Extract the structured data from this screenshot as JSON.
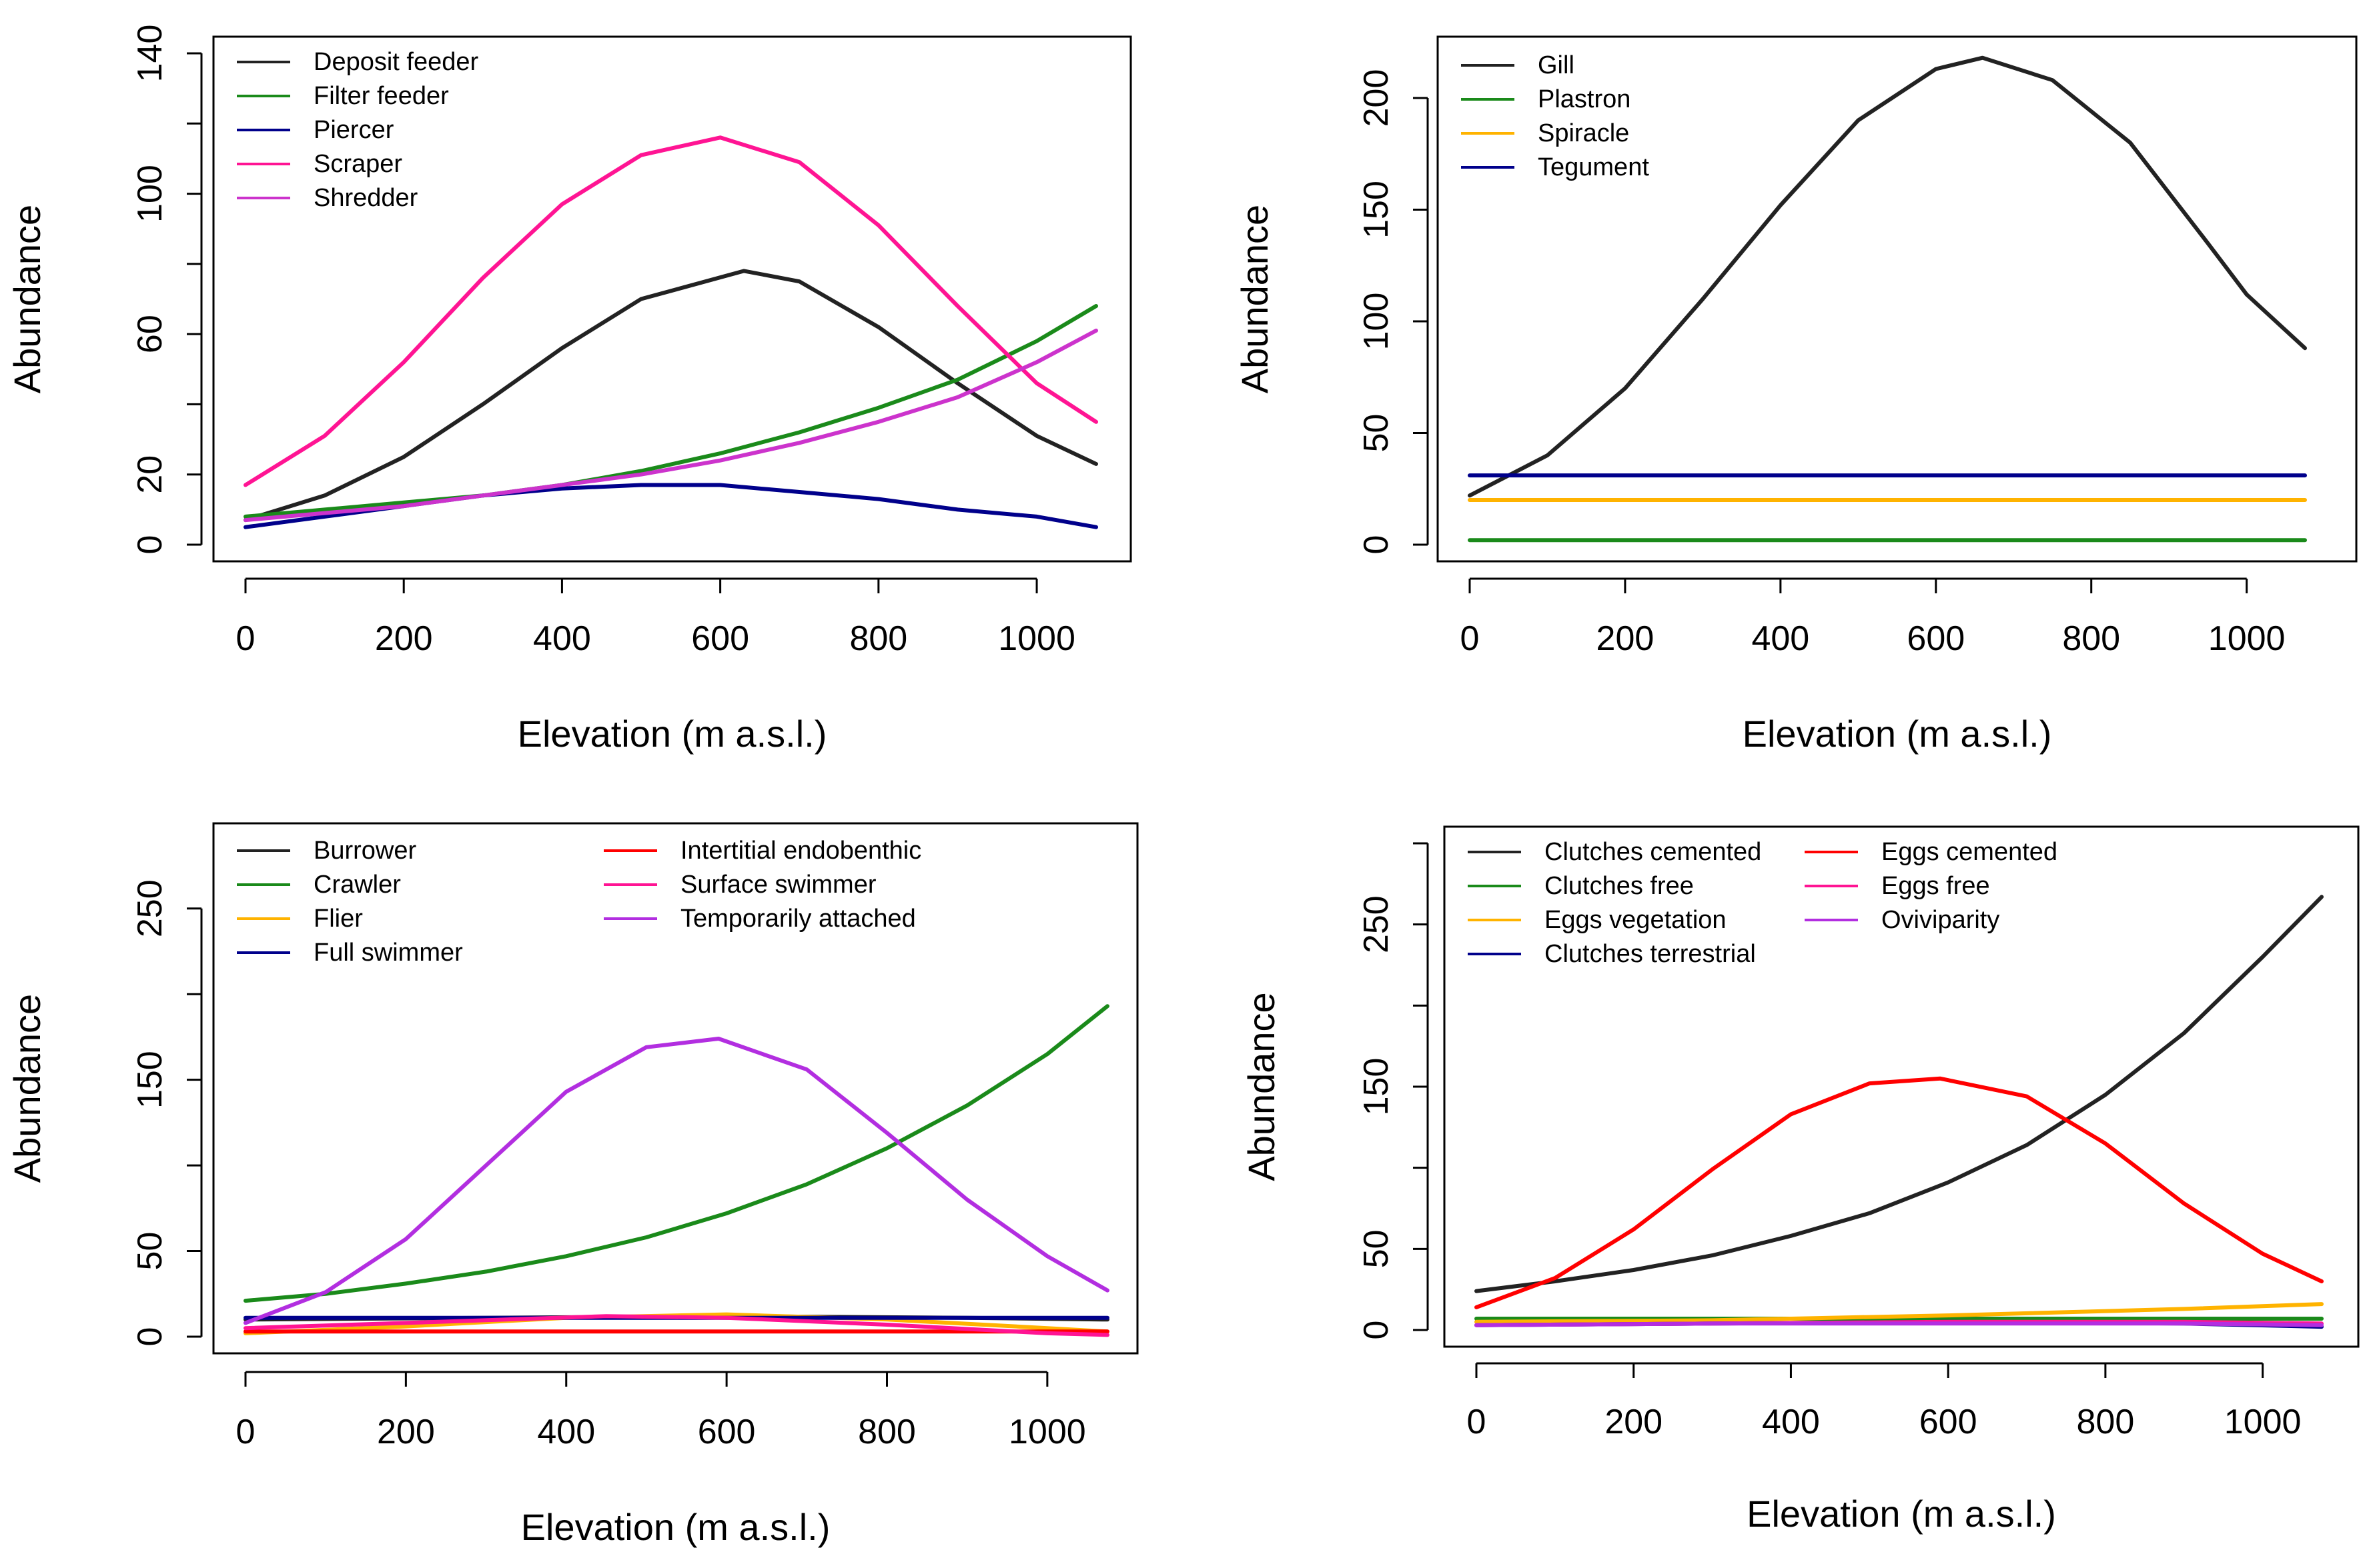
{
  "chart_data": [
    {
      "type": "line",
      "xlabel": "Elevation (m a.s.l.)",
      "ylabel": "Abundance",
      "xlim": [
        0,
        1075
      ],
      "ylim": [
        0,
        140
      ],
      "xticks": [
        0,
        200,
        400,
        600,
        800,
        1000
      ],
      "yticks": [
        0,
        20,
        60,
        100,
        140
      ],
      "yticks_minor": [
        40,
        80,
        120
      ],
      "legend_position": "top-left",
      "legend_columns": 1,
      "series": [
        {
          "name": "Deposit feeder",
          "color": "#222222",
          "x": [
            0,
            100,
            200,
            300,
            400,
            500,
            630,
            700,
            800,
            900,
            1000,
            1075
          ],
          "y": [
            7,
            14,
            25,
            40,
            56,
            70,
            78,
            75,
            62,
            46,
            31,
            23
          ]
        },
        {
          "name": "Filter feeder",
          "color": "#1a8a1a",
          "x": [
            0,
            100,
            200,
            300,
            400,
            500,
            600,
            700,
            800,
            900,
            1000,
            1075
          ],
          "y": [
            8,
            10,
            12,
            14,
            17,
            21,
            26,
            32,
            39,
            47,
            58,
            68
          ]
        },
        {
          "name": "Piercer",
          "color": "#00008b",
          "x": [
            0,
            100,
            200,
            300,
            400,
            500,
            600,
            700,
            800,
            900,
            1000,
            1075
          ],
          "y": [
            5,
            8,
            11,
            14,
            16,
            17,
            17,
            15,
            13,
            10,
            8,
            5
          ]
        },
        {
          "name": "Scraper",
          "color": "#ff1493",
          "x": [
            0,
            100,
            200,
            300,
            400,
            500,
            600,
            700,
            800,
            900,
            1000,
            1075
          ],
          "y": [
            17,
            31,
            52,
            76,
            97,
            111,
            116,
            109,
            91,
            68,
            46,
            35
          ]
        },
        {
          "name": "Shredder",
          "color": "#cc33cc",
          "x": [
            0,
            100,
            200,
            300,
            400,
            500,
            600,
            700,
            800,
            900,
            1000,
            1075
          ],
          "y": [
            7,
            9,
            11,
            14,
            17,
            20,
            24,
            29,
            35,
            42,
            52,
            61
          ]
        }
      ]
    },
    {
      "type": "line",
      "xlabel": "Elevation (m a.s.l.)",
      "ylabel": "Abundance",
      "xlim": [
        0,
        1075
      ],
      "ylim": [
        0,
        220
      ],
      "xticks": [
        0,
        200,
        400,
        600,
        800,
        1000
      ],
      "yticks": [
        0,
        50,
        100,
        150,
        200
      ],
      "yticks_minor": [],
      "legend_position": "top-left",
      "legend_columns": 1,
      "series": [
        {
          "name": "Gill",
          "color": "#222222",
          "x": [
            0,
            100,
            200,
            300,
            400,
            500,
            600,
            660,
            750,
            850,
            950,
            1000,
            1075
          ],
          "y": [
            22,
            40,
            70,
            110,
            152,
            190,
            213,
            218,
            208,
            180,
            135,
            112,
            88
          ]
        },
        {
          "name": "Plastron",
          "color": "#1a8a1a",
          "x": [
            0,
            1075
          ],
          "y": [
            2,
            2
          ]
        },
        {
          "name": "Spiracle",
          "color": "#ffb300",
          "x": [
            0,
            1075
          ],
          "y": [
            20,
            20
          ]
        },
        {
          "name": "Tegument",
          "color": "#00008b",
          "x": [
            0,
            1075
          ],
          "y": [
            31,
            31
          ]
        }
      ]
    },
    {
      "type": "line",
      "xlabel": "Elevation (m a.s.l.)",
      "ylabel": "Abundance",
      "xlim": [
        0,
        1075
      ],
      "ylim": [
        0,
        290
      ],
      "xticks": [
        0,
        200,
        400,
        600,
        800,
        1000
      ],
      "yticks": [
        0,
        50,
        150,
        250
      ],
      "yticks_minor": [
        100,
        200
      ],
      "legend_position": "top",
      "legend_columns": 2,
      "series": [
        {
          "name": "Burrower",
          "color": "#222222",
          "x": [
            0,
            300,
            600,
            900,
            1075
          ],
          "y": [
            10,
            11,
            12,
            11,
            10
          ]
        },
        {
          "name": "Crawler",
          "color": "#1a8a1a",
          "x": [
            0,
            100,
            200,
            300,
            400,
            500,
            600,
            700,
            800,
            900,
            1000,
            1075
          ],
          "y": [
            21,
            25,
            31,
            38,
            47,
            58,
            72,
            89,
            110,
            135,
            165,
            193
          ]
        },
        {
          "name": "Flier",
          "color": "#ffb300",
          "x": [
            0,
            200,
            400,
            600,
            800,
            1000,
            1075
          ],
          "y": [
            2,
            6,
            11,
            13,
            10,
            5,
            3
          ]
        },
        {
          "name": "Full swimmer",
          "color": "#00008b",
          "x": [
            0,
            1075
          ],
          "y": [
            11,
            11
          ]
        },
        {
          "name": "Intertitial endobenthic",
          "color": "#ff0000",
          "x": [
            0,
            1075
          ],
          "y": [
            3,
            3
          ]
        },
        {
          "name": "Surface swimmer",
          "color": "#ff1493",
          "x": [
            0,
            200,
            450,
            600,
            800,
            1000,
            1075
          ],
          "y": [
            5,
            8,
            12,
            11,
            7,
            2,
            1
          ]
        },
        {
          "name": "Temporarily attached",
          "color": "#b22ee0",
          "x": [
            0,
            100,
            200,
            300,
            400,
            500,
            590,
            700,
            800,
            900,
            1000,
            1075
          ],
          "y": [
            8,
            26,
            57,
            100,
            143,
            169,
            174,
            156,
            119,
            80,
            47,
            27
          ]
        }
      ]
    },
    {
      "type": "line",
      "xlabel": "Elevation (m a.s.l.)",
      "ylabel": "Abundance",
      "xlim": [
        0,
        1075
      ],
      "ylim": [
        0,
        300
      ],
      "xticks": [
        0,
        200,
        400,
        600,
        800,
        1000
      ],
      "yticks": [
        0,
        50,
        150,
        250
      ],
      "yticks_minor": [
        100,
        200,
        300
      ],
      "legend_position": "top",
      "legend_columns": 2,
      "series": [
        {
          "name": "Clutches cemented",
          "color": "#222222",
          "x": [
            0,
            100,
            200,
            300,
            400,
            500,
            600,
            700,
            800,
            900,
            1000,
            1075
          ],
          "y": [
            24,
            30,
            37,
            46,
            58,
            72,
            91,
            114,
            145,
            183,
            230,
            267
          ]
        },
        {
          "name": "Clutches free",
          "color": "#1a8a1a",
          "x": [
            0,
            1075
          ],
          "y": [
            7,
            7
          ]
        },
        {
          "name": "Eggs vegetation",
          "color": "#ffb300",
          "x": [
            0,
            300,
            600,
            900,
            1075
          ],
          "y": [
            5,
            6,
            9,
            13,
            16
          ]
        },
        {
          "name": "Clutches terrestrial",
          "color": "#00008b",
          "x": [
            0,
            300,
            600,
            900,
            1075
          ],
          "y": [
            3,
            4,
            5,
            4,
            2
          ]
        },
        {
          "name": "Eggs cemented",
          "color": "#ff0000",
          "x": [
            0,
            100,
            200,
            300,
            400,
            500,
            590,
            700,
            800,
            900,
            1000,
            1075
          ],
          "y": [
            14,
            32,
            62,
            99,
            133,
            152,
            155,
            144,
            115,
            78,
            47,
            30
          ]
        },
        {
          "name": "Eggs free",
          "color": "#ff1493",
          "x": [
            0,
            300,
            600,
            900,
            1075
          ],
          "y": [
            3,
            4,
            5,
            5,
            4
          ]
        },
        {
          "name": "Oviviparity",
          "color": "#b22ee0",
          "x": [
            0,
            300,
            600,
            900,
            1075
          ],
          "y": [
            3,
            4,
            4,
            4,
            3
          ]
        }
      ]
    }
  ]
}
